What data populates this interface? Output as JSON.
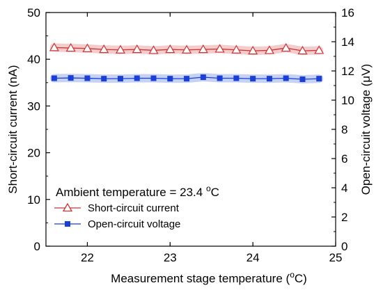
{
  "chart_data": {
    "type": "line",
    "xlabel_main": "Measurement stage temperature (",
    "xlabel_sup": "o",
    "xlabel_end": "C)",
    "ylabel_left": "Short-circuit current (nA)",
    "ylabel_right_main": "Open-circuit voltage (",
    "ylabel_right_mu": "μ",
    "ylabel_right_end": "V)",
    "xlim": [
      21.5,
      25
    ],
    "ylim_left": [
      0,
      50
    ],
    "ylim_right": [
      0,
      16
    ],
    "x_ticks": [
      22,
      23,
      24,
      25
    ],
    "x_tick_labels": [
      "22",
      "23",
      "24",
      "25"
    ],
    "y_left_ticks": [
      0,
      10,
      20,
      30,
      40,
      50
    ],
    "y_left_tick_labels": [
      "0",
      "10",
      "20",
      "30",
      "40",
      "50"
    ],
    "y_right_ticks": [
      0,
      2,
      4,
      6,
      8,
      10,
      12,
      14,
      16
    ],
    "y_right_tick_labels": [
      "0",
      "2",
      "4",
      "6",
      "8",
      "10",
      "12",
      "14",
      "16"
    ],
    "annotation_main": "Ambient temperature = 23.4 ",
    "annotation_sup": "o",
    "annotation_end": "C",
    "legend_position": "lower-left",
    "series": [
      {
        "name": "Short-circuit current",
        "axis": "left",
        "color": "#cc3333",
        "marker": "open-triangle",
        "band_color": "#f4cccc",
        "x": [
          21.6,
          21.8,
          22.0,
          22.2,
          22.4,
          22.6,
          22.8,
          23.0,
          23.2,
          23.4,
          23.6,
          23.8,
          24.0,
          24.2,
          24.4,
          24.6,
          24.8
        ],
        "values": [
          42.5,
          42.4,
          42.3,
          42.1,
          42.0,
          42.1,
          41.9,
          42.1,
          42.0,
          42.1,
          42.2,
          42.0,
          41.8,
          41.9,
          42.4,
          41.8,
          41.9
        ]
      },
      {
        "name": "Open-circuit voltage",
        "axis": "right",
        "color": "#1a3fd6",
        "marker": "filled-square",
        "band_color": "#c6d2f5",
        "x": [
          21.6,
          21.8,
          22.0,
          22.2,
          22.4,
          22.6,
          22.8,
          23.0,
          23.2,
          23.4,
          23.6,
          23.8,
          24.0,
          24.2,
          24.4,
          24.6,
          24.8
        ],
        "values": [
          11.5,
          11.52,
          11.5,
          11.47,
          11.47,
          11.5,
          11.5,
          11.47,
          11.47,
          11.57,
          11.5,
          11.5,
          11.47,
          11.47,
          11.5,
          11.43,
          11.47
        ]
      }
    ]
  }
}
